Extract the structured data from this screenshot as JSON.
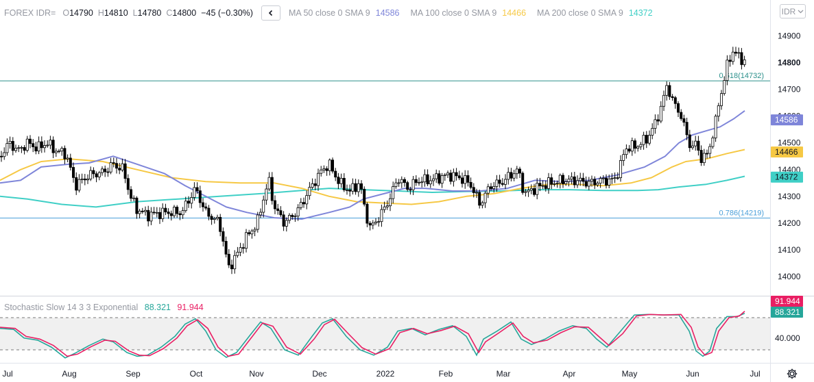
{
  "header": {
    "symbol": "FOREX IDR=",
    "ohlc": [
      {
        "label": "O",
        "value": "14790"
      },
      {
        "label": "H",
        "value": "14810"
      },
      {
        "label": "L",
        "value": "14780"
      },
      {
        "label": "C",
        "value": "14800"
      }
    ],
    "change": "−45 (−0.30%)",
    "collapse_icon": "chevron-left-icon",
    "moving_averages": [
      {
        "label": "MA 50 close 0 SMA 9",
        "value": "14586",
        "color": "#7e85d9"
      },
      {
        "label": "MA 100 close 0 SMA 9",
        "value": "14466",
        "color": "#f6c844"
      },
      {
        "label": "MA 200 close 0 SMA 9",
        "value": "14372",
        "color": "#3fcfc6"
      }
    ],
    "currency_button": "IDR",
    "currency_icon": "chevron-down-icon"
  },
  "stochastic": {
    "label": "Stochastic Slow 14 3 3 Exponential",
    "k_value": "88.321",
    "d_value": "91.944",
    "k_color": "#26a69a",
    "d_color": "#e91e63",
    "axis_label": "40.000",
    "band_upper": 80,
    "band_lower": 20
  },
  "settings_icon": "gear-icon",
  "chart_data": {
    "type": "candlestick",
    "price_axis": [
      "14900",
      "14800",
      "14700",
      "14600",
      "14500",
      "14400",
      "14300",
      "14200",
      "14100",
      "14000"
    ],
    "ylim": [
      13930,
      14960
    ],
    "x_labels": [
      "Jul",
      "Aug",
      "Sep",
      "Oct",
      "Nov",
      "Dec",
      "2022",
      "Feb",
      "Mar",
      "Apr",
      "May",
      "Jun",
      "Jul"
    ],
    "fib_levels": [
      {
        "label": "0.618(14732)",
        "value": 14732,
        "color": "#2a8f8a"
      },
      {
        "label": "0.786(14219)",
        "value": 14219,
        "color": "#4a9fd9"
      }
    ],
    "axis_badges": [
      {
        "value": "14586",
        "color": "#7e85d9"
      },
      {
        "value": "14466",
        "color": "#f6c844"
      },
      {
        "value": "14372",
        "color": "#3fcfc6"
      }
    ],
    "last_price": "14800",
    "ma50": [
      [
        0,
        14350
      ],
      [
        30,
        14360
      ],
      [
        60,
        14410
      ],
      [
        100,
        14420
      ],
      [
        130,
        14425
      ],
      [
        165,
        14450
      ],
      [
        200,
        14420
      ],
      [
        240,
        14385
      ],
      [
        270,
        14340
      ],
      [
        300,
        14300
      ],
      [
        330,
        14260
      ],
      [
        360,
        14240
      ],
      [
        400,
        14220
      ],
      [
        440,
        14215
      ],
      [
        480,
        14240
      ],
      [
        510,
        14260
      ],
      [
        530,
        14290
      ],
      [
        560,
        14310
      ],
      [
        590,
        14330
      ],
      [
        620,
        14330
      ],
      [
        660,
        14320
      ],
      [
        700,
        14320
      ],
      [
        740,
        14330
      ],
      [
        780,
        14360
      ],
      [
        820,
        14355
      ],
      [
        860,
        14360
      ],
      [
        900,
        14380
      ],
      [
        940,
        14410
      ],
      [
        970,
        14450
      ],
      [
        990,
        14500
      ],
      [
        1010,
        14530
      ],
      [
        1030,
        14545
      ],
      [
        1050,
        14560
      ],
      [
        1070,
        14590
      ],
      [
        1086,
        14620
      ]
    ],
    "ma100": [
      [
        0,
        14360
      ],
      [
        30,
        14400
      ],
      [
        60,
        14430
      ],
      [
        100,
        14440
      ],
      [
        150,
        14430
      ],
      [
        200,
        14400
      ],
      [
        250,
        14370
      ],
      [
        300,
        14355
      ],
      [
        350,
        14350
      ],
      [
        400,
        14350
      ],
      [
        440,
        14330
      ],
      [
        480,
        14300
      ],
      [
        520,
        14280
      ],
      [
        560,
        14275
      ],
      [
        600,
        14270
      ],
      [
        640,
        14280
      ],
      [
        680,
        14300
      ],
      [
        720,
        14310
      ],
      [
        760,
        14330
      ],
      [
        800,
        14345
      ],
      [
        840,
        14345
      ],
      [
        880,
        14340
      ],
      [
        920,
        14350
      ],
      [
        950,
        14370
      ],
      [
        980,
        14410
      ],
      [
        1000,
        14430
      ],
      [
        1030,
        14440
      ],
      [
        1060,
        14460
      ],
      [
        1086,
        14475
      ]
    ],
    "ma200": [
      [
        0,
        14300
      ],
      [
        40,
        14290
      ],
      [
        90,
        14270
      ],
      [
        140,
        14260
      ],
      [
        200,
        14280
      ],
      [
        260,
        14290
      ],
      [
        320,
        14300
      ],
      [
        380,
        14310
      ],
      [
        430,
        14320
      ],
      [
        480,
        14330
      ],
      [
        530,
        14325
      ],
      [
        580,
        14320
      ],
      [
        630,
        14315
      ],
      [
        680,
        14318
      ],
      [
        730,
        14320
      ],
      [
        780,
        14325
      ],
      [
        830,
        14325
      ],
      [
        880,
        14322
      ],
      [
        930,
        14322
      ],
      [
        960,
        14325
      ],
      [
        990,
        14335
      ],
      [
        1030,
        14345
      ],
      [
        1060,
        14360
      ],
      [
        1086,
        14375
      ]
    ],
    "price_path": [
      [
        0,
        14450
      ],
      [
        14,
        14500
      ],
      [
        26,
        14470
      ],
      [
        40,
        14500
      ],
      [
        55,
        14480
      ],
      [
        68,
        14500
      ],
      [
        82,
        14470
      ],
      [
        96,
        14460
      ],
      [
        110,
        14340
      ],
      [
        130,
        14380
      ],
      [
        150,
        14390
      ],
      [
        165,
        14420
      ],
      [
        180,
        14400
      ],
      [
        190,
        14300
      ],
      [
        200,
        14250
      ],
      [
        215,
        14230
      ],
      [
        240,
        14240
      ],
      [
        265,
        14240
      ],
      [
        285,
        14330
      ],
      [
        300,
        14240
      ],
      [
        320,
        14200
      ],
      [
        328,
        14100
      ],
      [
        333,
        14030
      ],
      [
        345,
        14080
      ],
      [
        360,
        14150
      ],
      [
        375,
        14200
      ],
      [
        385,
        14300
      ],
      [
        392,
        14360
      ],
      [
        400,
        14260
      ],
      [
        415,
        14200
      ],
      [
        435,
        14250
      ],
      [
        455,
        14340
      ],
      [
        470,
        14400
      ],
      [
        480,
        14420
      ],
      [
        495,
        14350
      ],
      [
        510,
        14320
      ],
      [
        525,
        14350
      ],
      [
        532,
        14250
      ],
      [
        540,
        14180
      ],
      [
        555,
        14230
      ],
      [
        570,
        14300
      ],
      [
        580,
        14370
      ],
      [
        595,
        14330
      ],
      [
        610,
        14360
      ],
      [
        625,
        14360
      ],
      [
        640,
        14370
      ],
      [
        655,
        14380
      ],
      [
        670,
        14370
      ],
      [
        685,
        14350
      ],
      [
        700,
        14270
      ],
      [
        715,
        14340
      ],
      [
        730,
        14350
      ],
      [
        745,
        14380
      ],
      [
        755,
        14400
      ],
      [
        765,
        14310
      ],
      [
        780,
        14330
      ],
      [
        795,
        14345
      ],
      [
        820,
        14360
      ],
      [
        840,
        14360
      ],
      [
        860,
        14350
      ],
      [
        880,
        14360
      ],
      [
        895,
        14360
      ],
      [
        903,
        14400
      ],
      [
        912,
        14480
      ],
      [
        930,
        14490
      ],
      [
        945,
        14520
      ],
      [
        955,
        14570
      ],
      [
        965,
        14640
      ],
      [
        973,
        14720
      ],
      [
        980,
        14660
      ],
      [
        992,
        14610
      ],
      [
        1000,
        14540
      ],
      [
        1008,
        14480
      ],
      [
        1016,
        14500
      ],
      [
        1022,
        14440
      ],
      [
        1030,
        14450
      ],
      [
        1036,
        14500
      ],
      [
        1042,
        14550
      ],
      [
        1047,
        14640
      ],
      [
        1055,
        14720
      ],
      [
        1062,
        14810
      ],
      [
        1068,
        14840
      ],
      [
        1074,
        14830
      ],
      [
        1080,
        14820
      ],
      [
        1086,
        14800
      ]
    ],
    "stochastic_k": [
      [
        0,
        60
      ],
      [
        20,
        58
      ],
      [
        35,
        42
      ],
      [
        55,
        38
      ],
      [
        75,
        25
      ],
      [
        95,
        5
      ],
      [
        110,
        14
      ],
      [
        130,
        28
      ],
      [
        150,
        40
      ],
      [
        165,
        35
      ],
      [
        185,
        15
      ],
      [
        200,
        8
      ],
      [
        215,
        10
      ],
      [
        235,
        25
      ],
      [
        255,
        45
      ],
      [
        270,
        68
      ],
      [
        285,
        78
      ],
      [
        300,
        55
      ],
      [
        315,
        20
      ],
      [
        330,
        6
      ],
      [
        345,
        15
      ],
      [
        365,
        48
      ],
      [
        380,
        72
      ],
      [
        395,
        60
      ],
      [
        415,
        20
      ],
      [
        435,
        10
      ],
      [
        455,
        45
      ],
      [
        470,
        70
      ],
      [
        485,
        78
      ],
      [
        505,
        45
      ],
      [
        525,
        20
      ],
      [
        545,
        10
      ],
      [
        565,
        25
      ],
      [
        580,
        55
      ],
      [
        600,
        60
      ],
      [
        620,
        48
      ],
      [
        640,
        58
      ],
      [
        660,
        65
      ],
      [
        680,
        45
      ],
      [
        695,
        10
      ],
      [
        705,
        40
      ],
      [
        725,
        55
      ],
      [
        745,
        72
      ],
      [
        760,
        40
      ],
      [
        775,
        30
      ],
      [
        795,
        40
      ],
      [
        815,
        55
      ],
      [
        835,
        65
      ],
      [
        855,
        60
      ],
      [
        870,
        40
      ],
      [
        885,
        25
      ],
      [
        905,
        55
      ],
      [
        925,
        85
      ],
      [
        945,
        86
      ],
      [
        965,
        85
      ],
      [
        990,
        85
      ],
      [
        1005,
        55
      ],
      [
        1015,
        18
      ],
      [
        1025,
        8
      ],
      [
        1035,
        18
      ],
      [
        1045,
        60
      ],
      [
        1060,
        82
      ],
      [
        1075,
        82
      ],
      [
        1086,
        88
      ]
    ],
    "stochastic_d": [
      [
        0,
        62
      ],
      [
        22,
        60
      ],
      [
        38,
        45
      ],
      [
        58,
        40
      ],
      [
        78,
        28
      ],
      [
        98,
        8
      ],
      [
        113,
        12
      ],
      [
        133,
        26
      ],
      [
        153,
        38
      ],
      [
        168,
        36
      ],
      [
        188,
        18
      ],
      [
        203,
        10
      ],
      [
        218,
        9
      ],
      [
        238,
        22
      ],
      [
        258,
        42
      ],
      [
        273,
        65
      ],
      [
        288,
        76
      ],
      [
        303,
        60
      ],
      [
        318,
        25
      ],
      [
        333,
        8
      ],
      [
        348,
        12
      ],
      [
        368,
        45
      ],
      [
        383,
        70
      ],
      [
        398,
        64
      ],
      [
        418,
        25
      ],
      [
        438,
        12
      ],
      [
        458,
        40
      ],
      [
        473,
        67
      ],
      [
        488,
        77
      ],
      [
        508,
        50
      ],
      [
        528,
        24
      ],
      [
        548,
        12
      ],
      [
        568,
        22
      ],
      [
        583,
        52
      ],
      [
        603,
        60
      ],
      [
        623,
        50
      ],
      [
        643,
        56
      ],
      [
        663,
        64
      ],
      [
        683,
        50
      ],
      [
        698,
        15
      ],
      [
        708,
        35
      ],
      [
        728,
        52
      ],
      [
        748,
        70
      ],
      [
        763,
        45
      ],
      [
        778,
        33
      ],
      [
        798,
        38
      ],
      [
        818,
        52
      ],
      [
        838,
        63
      ],
      [
        858,
        62
      ],
      [
        873,
        45
      ],
      [
        888,
        28
      ],
      [
        908,
        50
      ],
      [
        928,
        83
      ],
      [
        948,
        86
      ],
      [
        968,
        85
      ],
      [
        993,
        86
      ],
      [
        1008,
        62
      ],
      [
        1018,
        25
      ],
      [
        1028,
        10
      ],
      [
        1038,
        15
      ],
      [
        1048,
        55
      ],
      [
        1063,
        80
      ],
      [
        1078,
        83
      ],
      [
        1086,
        92
      ]
    ]
  }
}
